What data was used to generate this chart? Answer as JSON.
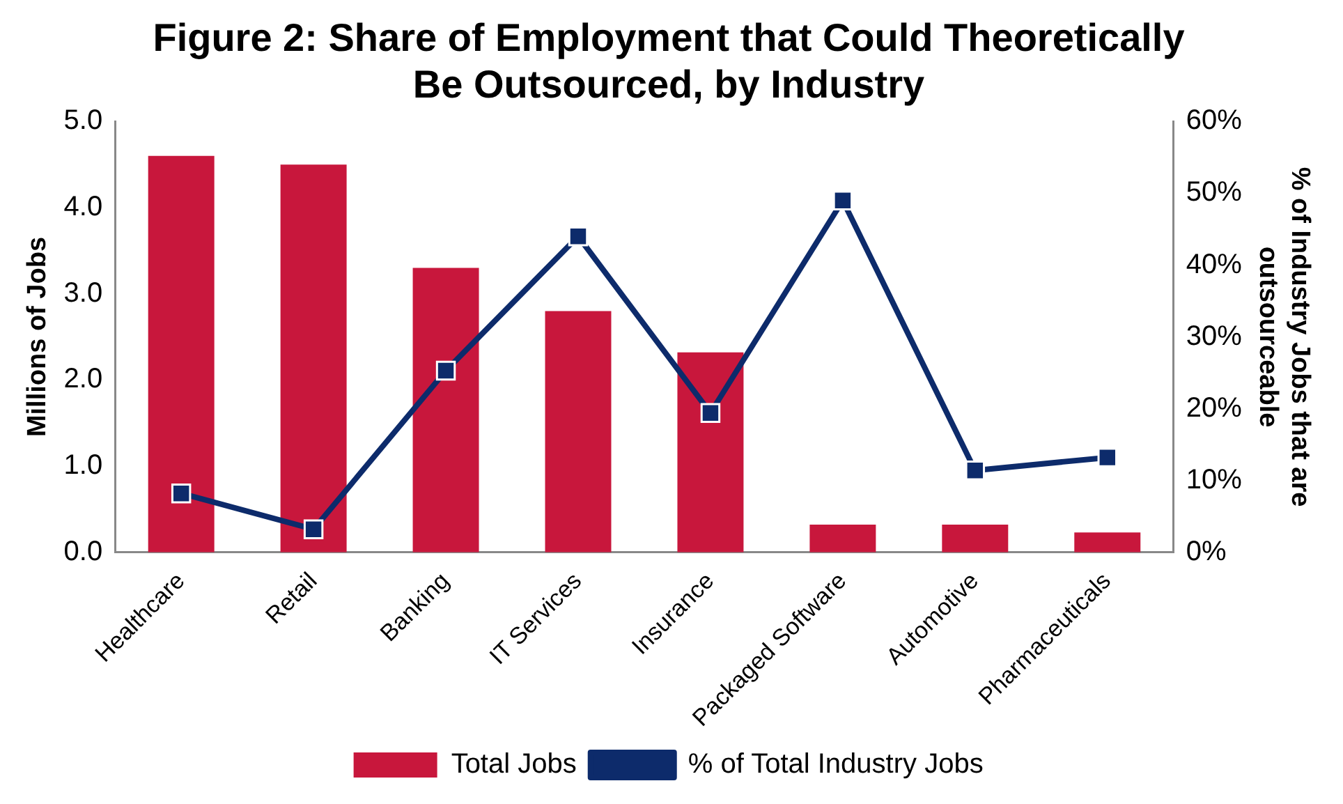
{
  "chart_data": {
    "type": "bar",
    "title": "Figure 2: Share of Employment that Could Theoretically Be Outsourced, by Industry",
    "ylabel": "Millions of Jobs",
    "y2label": "% of Industry Jobs that are outsourceable",
    "categories": [
      "Healthcare",
      "Retail",
      "Banking",
      "IT Services",
      "Insurance",
      "Packaged Software",
      "Automotive",
      "Pharmaceuticals"
    ],
    "series": [
      {
        "name": "Total Jobs",
        "color": "#c8173c",
        "values": [
          4.6,
          4.5,
          3.3,
          2.8,
          2.32,
          0.32,
          0.32,
          0.23
        ]
      },
      {
        "name": "% of Total Industry Jobs",
        "type": "line",
        "axis": "y2",
        "color": "#0d2b6b",
        "marker": "square",
        "values": [
          8.2,
          3.2,
          25.3,
          44,
          19.4,
          49,
          11.4,
          13.2
        ]
      }
    ],
    "ylim": [
      0,
      5
    ],
    "yticks": [
      {
        "value": 0,
        "label": "0.0"
      },
      {
        "value": 1,
        "label": "1.0"
      },
      {
        "value": 2,
        "label": "2.0"
      },
      {
        "value": 3,
        "label": "3.0"
      },
      {
        "value": 4,
        "label": "4.0"
      },
      {
        "value": 5,
        "label": "5.0"
      }
    ],
    "y2lim": [
      0,
      60
    ],
    "y2ticks": [
      {
        "value": 0,
        "label": "0%"
      },
      {
        "value": 10,
        "label": "10%"
      },
      {
        "value": 20,
        "label": "20%"
      },
      {
        "value": 30,
        "label": "30%"
      },
      {
        "value": 40,
        "label": "40%"
      },
      {
        "value": 50,
        "label": "50%"
      },
      {
        "value": 60,
        "label": "60%"
      }
    ],
    "grid": false,
    "legend": "bottom"
  }
}
